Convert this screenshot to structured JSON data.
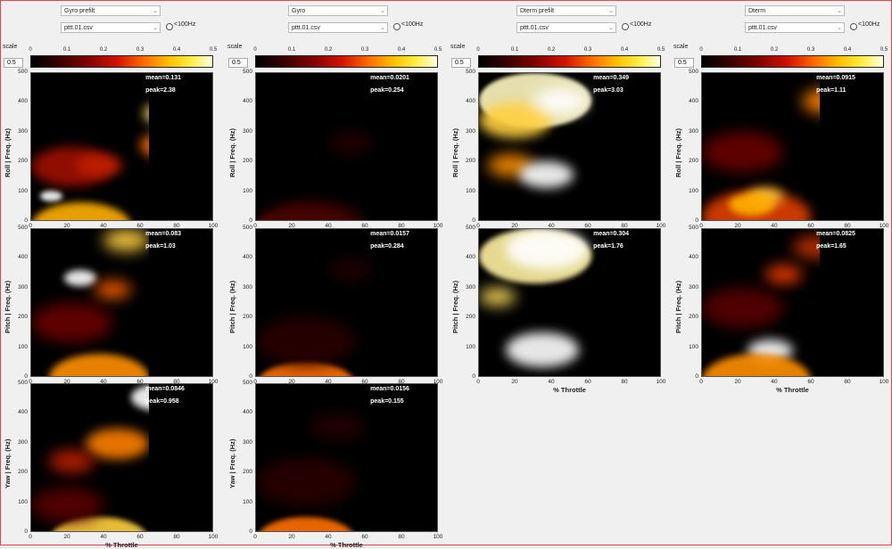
{
  "columns": [
    {
      "id": "gyro-prefilt",
      "type_select": "Gyro prefilt",
      "file_select": "pttt.01.csv",
      "radio_label": "<100Hz",
      "scale_label": "scale",
      "scale_value": "0.5"
    },
    {
      "id": "gyro",
      "type_select": "Gyro",
      "file_select": "pttt.01.csv",
      "radio_label": "<100Hz",
      "scale_label": "scale",
      "scale_value": "0.5"
    },
    {
      "id": "dterm-prefilt",
      "type_select": "Dterm prefilt",
      "file_select": "pttt.01.csv",
      "radio_label": "<100Hz",
      "scale_label": "scale",
      "scale_value": "0.5"
    },
    {
      "id": "dterm",
      "type_select": "Dterm",
      "file_select": "pttt.01.csv",
      "radio_label": "<100Hz",
      "scale_label": "scale",
      "scale_value": "0.5"
    }
  ],
  "colorbar_ticks": [
    "0",
    "0.1",
    "0.2",
    "0.3",
    "0.4",
    "0.5"
  ],
  "x_ticks": [
    "0",
    "20",
    "40",
    "60",
    "80",
    "100"
  ],
  "y_ticks": [
    "500",
    "400",
    "300",
    "200",
    "100",
    "0"
  ],
  "x_label": "% Throttle",
  "y_labels": {
    "roll": "Roll  |  Freq. (Hz)",
    "pitch": "Pitch  |  Freq. (Hz)",
    "yaw": "Yaw  |  Freq. (Hz)"
  },
  "plots": [
    {
      "col": 0,
      "row": "roll",
      "mean": "mean=0.131",
      "peak": "peak=2.38"
    },
    {
      "col": 1,
      "row": "roll",
      "mean": "mean=0.0201",
      "peak": "peak=0.254"
    },
    {
      "col": 2,
      "row": "roll",
      "mean": "mean=0.349",
      "peak": "peak=3.03"
    },
    {
      "col": 3,
      "row": "roll",
      "mean": "mean=0.0915",
      "peak": "peak=1.11"
    },
    {
      "col": 0,
      "row": "pitch",
      "mean": "mean=0.083",
      "peak": "peak=1.03"
    },
    {
      "col": 1,
      "row": "pitch",
      "mean": "mean=0.0157",
      "peak": "peak=0.284"
    },
    {
      "col": 2,
      "row": "pitch",
      "mean": "mean=0.304",
      "peak": "peak=1.76"
    },
    {
      "col": 3,
      "row": "pitch",
      "mean": "mean=0.0825",
      "peak": "peak=1.65"
    },
    {
      "col": 0,
      "row": "yaw",
      "mean": "mean=0.0846",
      "peak": "peak=0.958"
    },
    {
      "col": 1,
      "row": "yaw",
      "mean": "mean=0.0156",
      "peak": "peak=0.155"
    }
  ]
}
